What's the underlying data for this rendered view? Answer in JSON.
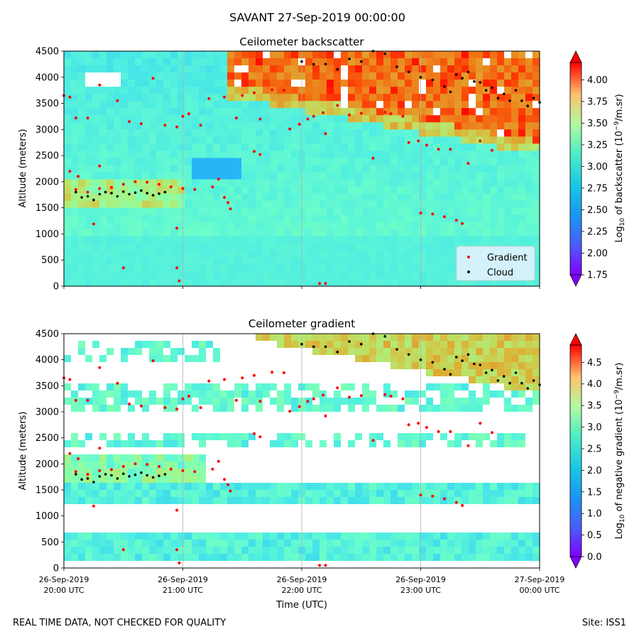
{
  "suptitle": "SAVANT 27-Sep-2019 00:00:00",
  "footer_left": "REAL TIME DATA, NOT CHECKED FOR QUALITY",
  "footer_right": "Site: ISS1",
  "colors": {
    "gradient_marker": "#ff0000",
    "cloud_marker": "#000000",
    "legend_bg": "#d4f2fb",
    "grid": "#b0b0b0",
    "colormap": "rainbow"
  },
  "chart_data": [
    {
      "type": "heatmap",
      "title": "Ceilometer backscatter",
      "ylabel": "Altitude (meters)",
      "xlabel": "",
      "ylim": [
        0,
        4500
      ],
      "yticks": [
        "0",
        "500",
        "1000",
        "1500",
        "2000",
        "2500",
        "3000",
        "3500",
        "4000",
        "4500"
      ],
      "xlim": [
        "26-Sep-2019 20:00 UTC",
        "27-Sep-2019 00:00 UTC"
      ],
      "grid": "vertical",
      "legend": {
        "placement": "lower-right",
        "entries": [
          "Gradient",
          "Cloud"
        ]
      },
      "colorbar": {
        "label_prefix": "Log",
        "label_sub": "10",
        "label_mid": " of backscatter (10",
        "label_sup": "−9",
        "label_suffix": "/m.sr)",
        "range": [
          1.75,
          4.2
        ],
        "ticks": [
          "1.75",
          "2.00",
          "2.25",
          "2.50",
          "2.75",
          "3.00",
          "3.25",
          "3.50",
          "3.75",
          "4.00"
        ],
        "extend": "both"
      }
    },
    {
      "type": "heatmap",
      "title": "Ceilometer gradient",
      "ylabel": "Altitude (meters)",
      "xlabel": "Time (UTC)",
      "ylim": [
        0,
        4500
      ],
      "yticks": [
        "0",
        "500",
        "1000",
        "1500",
        "2000",
        "2500",
        "3000",
        "3500",
        "4000",
        "4500"
      ],
      "xticks": [
        {
          "date": "26-Sep-2019",
          "time": "20:00 UTC"
        },
        {
          "date": "26-Sep-2019",
          "time": "21:00 UTC"
        },
        {
          "date": "26-Sep-2019",
          "time": "22:00 UTC"
        },
        {
          "date": "26-Sep-2019",
          "time": "23:00 UTC"
        },
        {
          "date": "27-Sep-2019",
          "time": "00:00 UTC"
        }
      ],
      "grid": "vertical",
      "colorbar": {
        "label_prefix": "Log",
        "label_sub": "10",
        "label_mid": " of negative gradient (10",
        "label_sup": "−9",
        "label_suffix": "/m.sr)",
        "range": [
          0.0,
          4.9
        ],
        "ticks": [
          "0.0",
          "0.5",
          "1.0",
          "1.5",
          "2.0",
          "2.5",
          "3.0",
          "3.5",
          "4.0",
          "4.5"
        ],
        "extend": "both"
      }
    }
  ],
  "gradient_points": [
    [
      20.0,
      3650
    ],
    [
      20.05,
      3620
    ],
    [
      20.1,
      3220
    ],
    [
      20.2,
      3220
    ],
    [
      20.3,
      3850
    ],
    [
      20.45,
      3550
    ],
    [
      20.55,
      3150
    ],
    [
      20.65,
      3110
    ],
    [
      20.75,
      3980
    ],
    [
      20.85,
      3080
    ],
    [
      20.95,
      3050
    ],
    [
      21.05,
      3300
    ],
    [
      21.15,
      3080
    ],
    [
      21.22,
      3590
    ],
    [
      21.35,
      3620
    ],
    [
      21.45,
      3220
    ],
    [
      21.5,
      3650
    ],
    [
      21.6,
      3700
    ],
    [
      21.65,
      3200
    ],
    [
      21.75,
      3760
    ],
    [
      21.85,
      3750
    ],
    [
      21.9,
      3010
    ],
    [
      21.98,
      3100
    ],
    [
      22.05,
      3200
    ],
    [
      22.1,
      3250
    ],
    [
      22.18,
      3320
    ],
    [
      22.2,
      2920
    ],
    [
      22.3,
      3460
    ],
    [
      22.4,
      3280
    ],
    [
      22.5,
      3310
    ],
    [
      22.6,
      2450
    ],
    [
      22.7,
      3330
    ],
    [
      22.75,
      3300
    ],
    [
      22.85,
      3250
    ],
    [
      22.9,
      2750
    ],
    [
      22.98,
      2780
    ],
    [
      23.05,
      2700
    ],
    [
      23.15,
      2620
    ],
    [
      23.25,
      2620
    ],
    [
      23.4,
      2350
    ],
    [
      23.5,
      2780
    ],
    [
      23.6,
      2600
    ],
    [
      23.0,
      1400
    ],
    [
      23.1,
      1380
    ],
    [
      23.2,
      1330
    ],
    [
      23.3,
      1260
    ],
    [
      23.35,
      1200
    ],
    [
      21.35,
      1700
    ],
    [
      21.38,
      1600
    ],
    [
      21.4,
      1480
    ],
    [
      21.3,
      2050
    ],
    [
      21.25,
      1900
    ],
    [
      21.1,
      1850
    ],
    [
      21.0,
      1870
    ],
    [
      20.9,
      1900
    ],
    [
      20.8,
      1950
    ],
    [
      20.7,
      1990
    ],
    [
      20.6,
      2000
    ],
    [
      20.5,
      1950
    ],
    [
      20.4,
      1890
    ],
    [
      20.3,
      1870
    ],
    [
      20.2,
      1800
    ],
    [
      20.1,
      1850
    ],
    [
      20.05,
      2200
    ],
    [
      20.12,
      2100
    ],
    [
      20.3,
      2300
    ],
    [
      20.25,
      1190
    ],
    [
      20.5,
      350
    ],
    [
      20.95,
      1110
    ],
    [
      20.95,
      350
    ],
    [
      20.97,
      100
    ],
    [
      22.15,
      50
    ],
    [
      22.2,
      50
    ],
    [
      21.6,
      2580
    ],
    [
      21.65,
      2520
    ],
    [
      21.0,
      3250
    ]
  ],
  "cloud_points": [
    [
      20.1,
      1800
    ],
    [
      20.15,
      1700
    ],
    [
      20.2,
      1720
    ],
    [
      20.25,
      1650
    ],
    [
      20.3,
      1760
    ],
    [
      20.35,
      1800
    ],
    [
      20.4,
      1780
    ],
    [
      20.45,
      1720
    ],
    [
      20.5,
      1810
    ],
    [
      20.55,
      1760
    ],
    [
      20.6,
      1790
    ],
    [
      20.65,
      1830
    ],
    [
      20.7,
      1780
    ],
    [
      20.75,
      1740
    ],
    [
      20.8,
      1770
    ],
    [
      20.85,
      1800
    ],
    [
      22.0,
      4300
    ],
    [
      22.1,
      4250
    ],
    [
      22.2,
      4250
    ],
    [
      22.3,
      4150
    ],
    [
      22.4,
      4350
    ],
    [
      22.5,
      4300
    ],
    [
      22.6,
      4500
    ],
    [
      22.7,
      4450
    ],
    [
      22.8,
      4200
    ],
    [
      22.9,
      4100
    ],
    [
      23.0,
      4000
    ],
    [
      23.1,
      3950
    ],
    [
      23.2,
      3820
    ],
    [
      23.25,
      3720
    ],
    [
      23.3,
      4050
    ],
    [
      23.35,
      3980
    ],
    [
      23.4,
      4100
    ],
    [
      23.45,
      3920
    ],
    [
      23.5,
      3900
    ],
    [
      23.55,
      3750
    ],
    [
      23.6,
      3800
    ],
    [
      23.65,
      3600
    ],
    [
      23.7,
      3680
    ],
    [
      23.75,
      3550
    ],
    [
      23.8,
      3750
    ],
    [
      23.85,
      3550
    ],
    [
      23.9,
      3450
    ],
    [
      23.95,
      3600
    ],
    [
      24.0,
      3520
    ]
  ]
}
